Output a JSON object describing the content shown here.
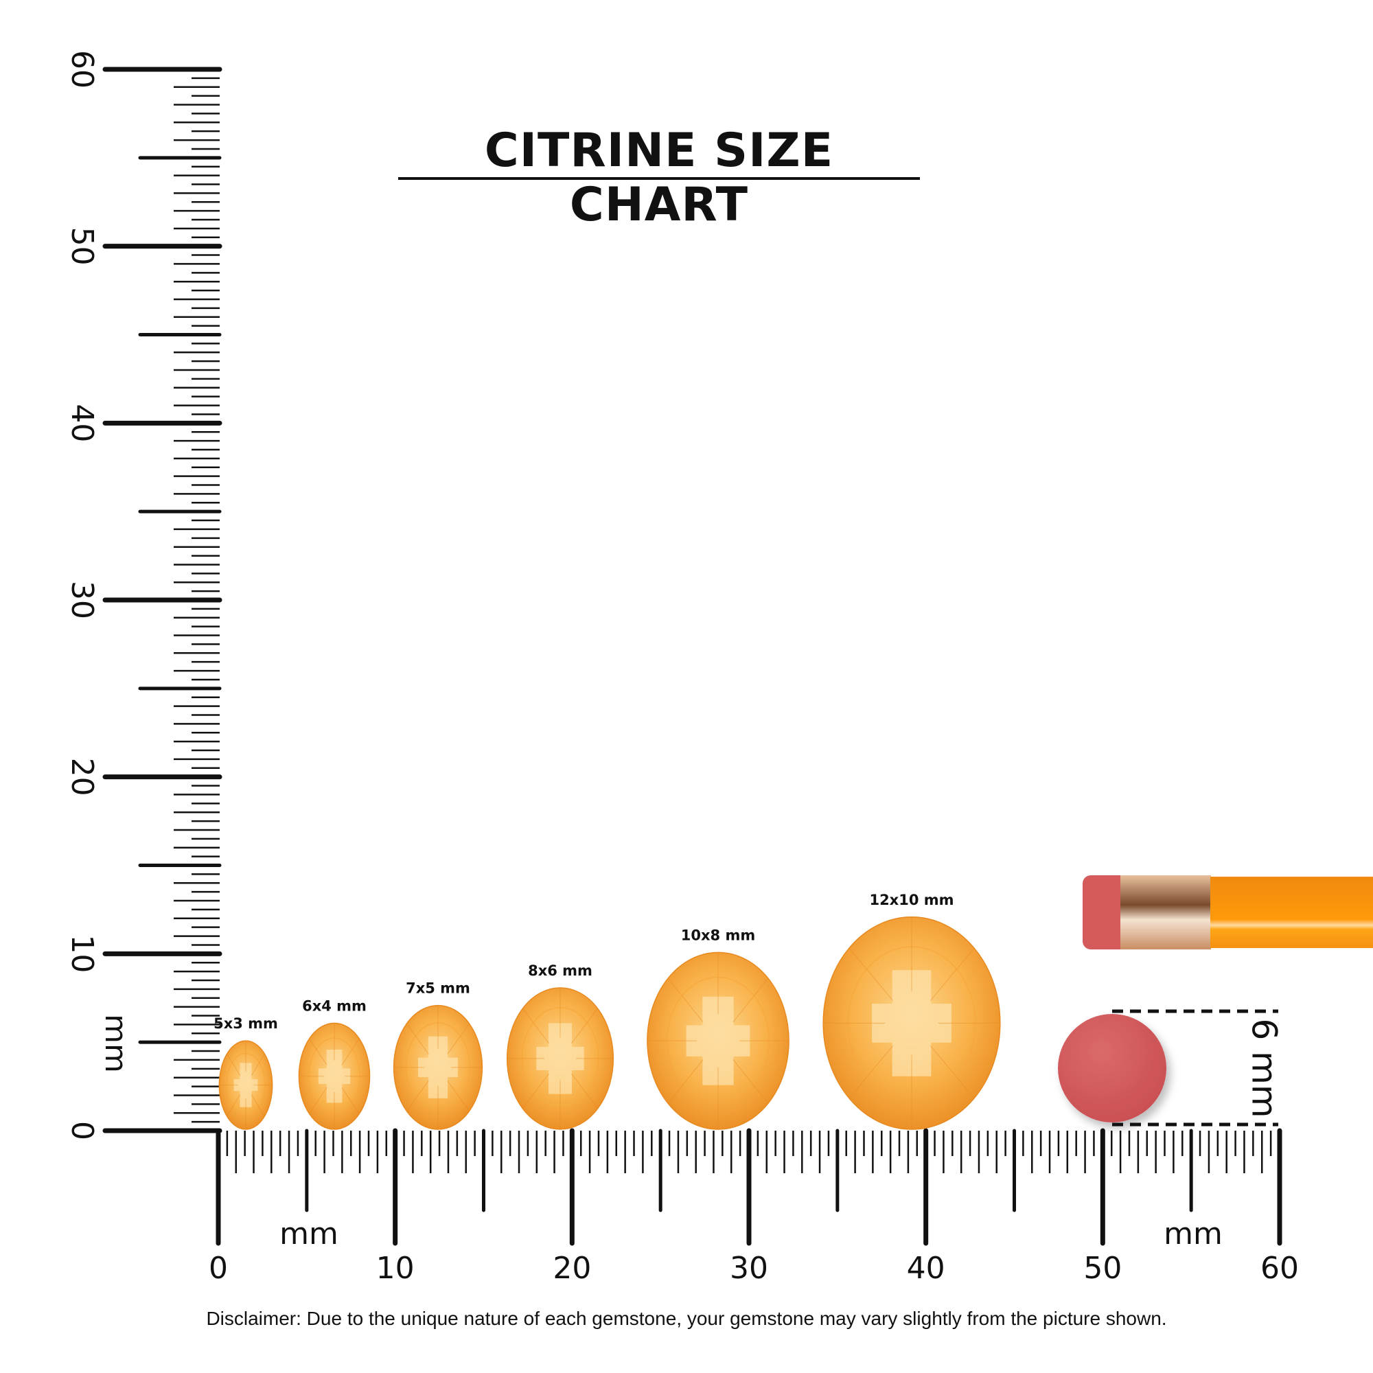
{
  "title": "CITRINE SIZE CHART",
  "disclaimer": "Disclaimer: Due to the unique nature of each gemstone, your gemstone may vary slightly from the picture shown.",
  "ruler": {
    "unit_label": "mm",
    "range_mm": [
      0,
      60
    ],
    "major_step_mm": 10,
    "minor_step_mm": 0.5,
    "vertical_labels": [
      "0",
      "10",
      "20",
      "30",
      "40",
      "50",
      "60"
    ],
    "horizontal_labels": [
      "0",
      "10",
      "20",
      "30",
      "40",
      "50",
      "60"
    ]
  },
  "gems": [
    {
      "label": "5x3 mm",
      "length_mm": 5,
      "width_mm": 3
    },
    {
      "label": "6x4 mm",
      "length_mm": 6,
      "width_mm": 4
    },
    {
      "label": "7x5 mm",
      "length_mm": 7,
      "width_mm": 5
    },
    {
      "label": "8x6 mm",
      "length_mm": 8,
      "width_mm": 6
    },
    {
      "label": "10x8 mm",
      "length_mm": 10,
      "width_mm": 8
    },
    {
      "label": "12x10 mm",
      "length_mm": 12,
      "width_mm": 10
    }
  ],
  "eraser_reference": {
    "label": "6 mm",
    "diameter_mm": 6
  },
  "colors": {
    "gem_light": "#fcd68e",
    "gem_mid": "#f9b24a",
    "gem_dark": "#e8891f",
    "eraser": "#d45a5c",
    "pencil_body": "#ff9a0a",
    "ferrule": "#d9a27a",
    "ink": "#111111"
  }
}
